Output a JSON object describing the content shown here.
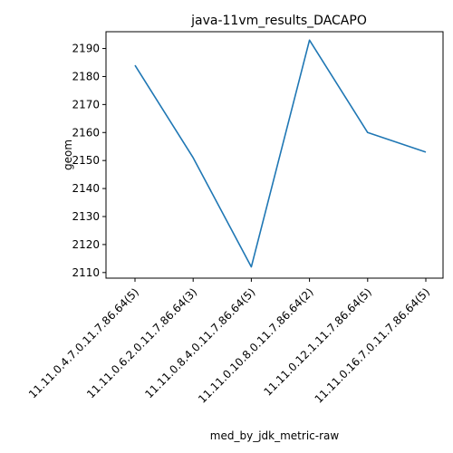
{
  "chart_data": {
    "type": "line",
    "title": "java-11vm_results_DACAPO",
    "xlabel": "med_by_jdk_metric-raw",
    "ylabel": "geom",
    "categories": [
      "11.11.0.4.7.0.11.7.86.64(5)",
      "11.11.0.6.2.0.11.7.86.64(3)",
      "11.11.0.8.4.0.11.7.86.64(5)",
      "11.11.0.10.8.0.11.7.86.64(2)",
      "11.11.0.12.1.11.7.86.64(5)",
      "11.11.0.16.7.0.11.7.86.64(5)"
    ],
    "series": [
      {
        "values": [
          2184,
          2151,
          2112,
          2193,
          2160,
          2153
        ],
        "color": "#1f77b4"
      }
    ],
    "ylim": [
      2108,
      2196
    ],
    "yticks": [
      2110,
      2120,
      2130,
      2140,
      2150,
      2160,
      2170,
      2180,
      2190
    ],
    "grid": false,
    "legend": "none"
  }
}
